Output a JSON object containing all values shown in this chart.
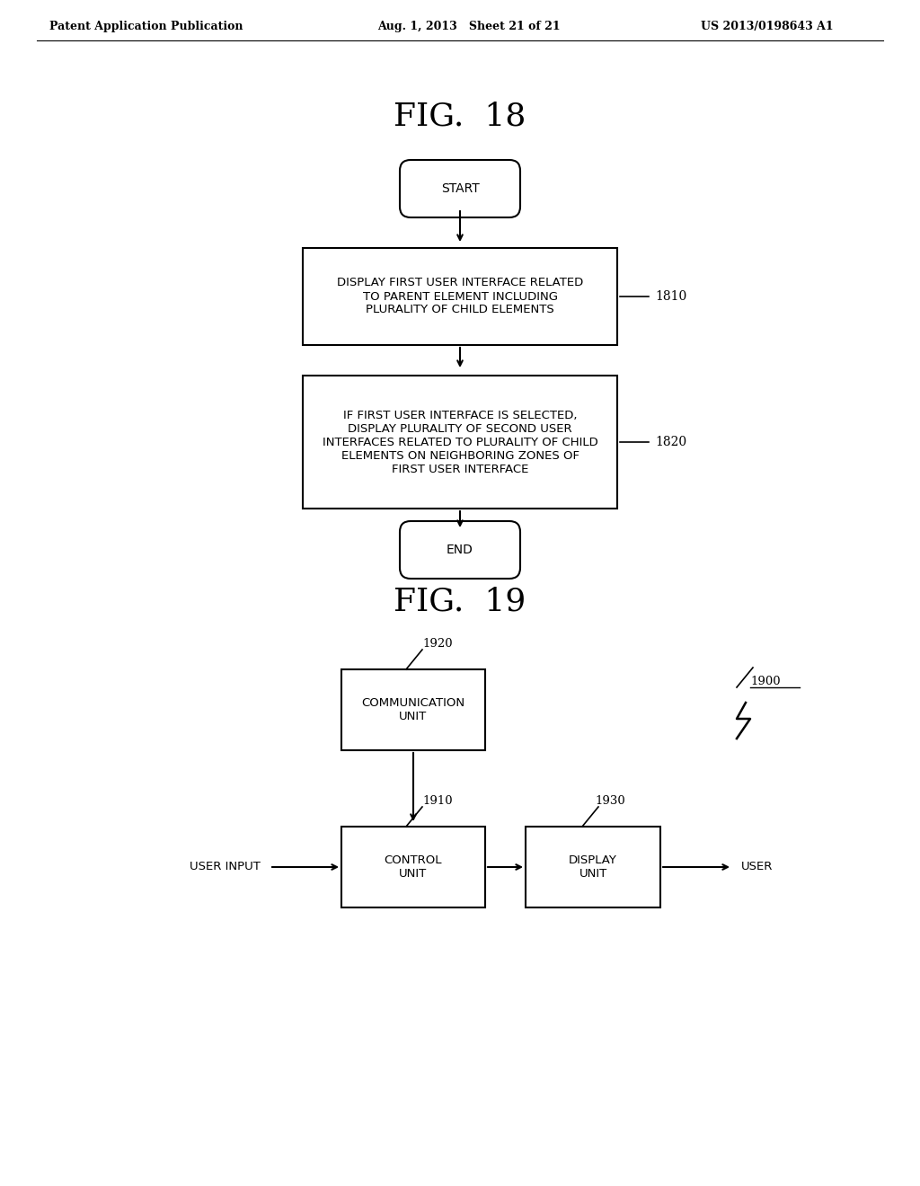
{
  "background_color": "#ffffff",
  "header_left": "Patent Application Publication",
  "header_mid": "Aug. 1, 2013   Sheet 21 of 21",
  "header_right": "US 2013/0198643 A1",
  "fig18_title": "FIG.  18",
  "fig19_title": "FIG.  19",
  "start_label": "START",
  "end_label": "END",
  "box1_text": "DISPLAY FIRST USER INTERFACE RELATED\nTO PARENT ELEMENT INCLUDING\nPLURALITY OF CHILD ELEMENTS",
  "box1_label": "1810",
  "box2_text": "IF FIRST USER INTERFACE IS SELECTED,\nDISPLAY PLURALITY OF SECOND USER\nINTERFACES RELATED TO PLURALITY OF CHILD\nELEMENTS ON NEIGHBORING ZONES OF\nFIRST USER INTERFACE",
  "box2_label": "1820",
  "comm_label": "1920",
  "comm_text": "COMMUNICATION\nUNIT",
  "ctrl_label": "1910",
  "ctrl_text": "CONTROL\nUNIT",
  "disp_label": "1930",
  "disp_text": "DISPLAY\nUNIT",
  "device_label": "1900",
  "user_input_text": "USER INPUT",
  "user_text": "USER",
  "text_color": "#000000",
  "line_color": "#000000"
}
